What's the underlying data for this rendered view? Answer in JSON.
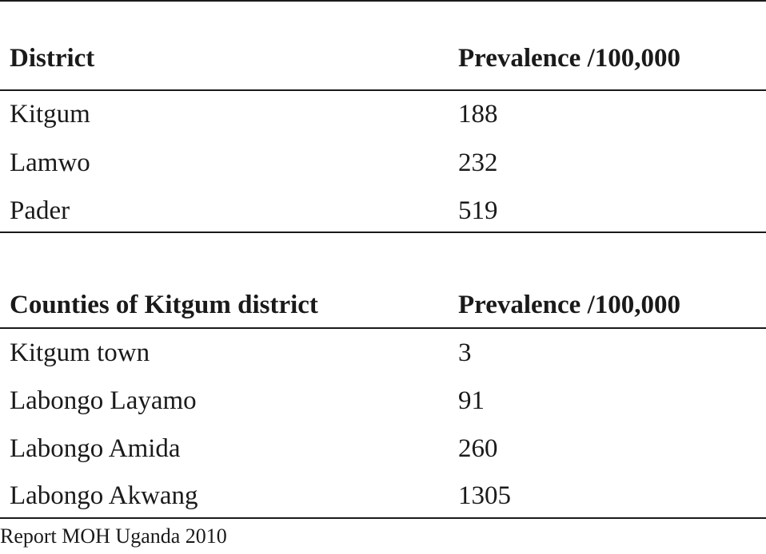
{
  "table1": {
    "headers": [
      "District",
      "Prevalence /100,000"
    ],
    "rows": [
      [
        "Kitgum",
        "188"
      ],
      [
        "Lamwo",
        "232"
      ],
      [
        "Pader",
        "519"
      ]
    ]
  },
  "table2": {
    "headers": [
      "Counties of Kitgum district",
      "Prevalence /100,000"
    ],
    "rows": [
      [
        "Kitgum town",
        "3"
      ],
      [
        "Labongo Layamo",
        "91"
      ],
      [
        "Labongo Amida",
        "260"
      ],
      [
        "Labongo Akwang",
        "1305"
      ]
    ]
  },
  "source": "Report MOH Uganda 2010"
}
